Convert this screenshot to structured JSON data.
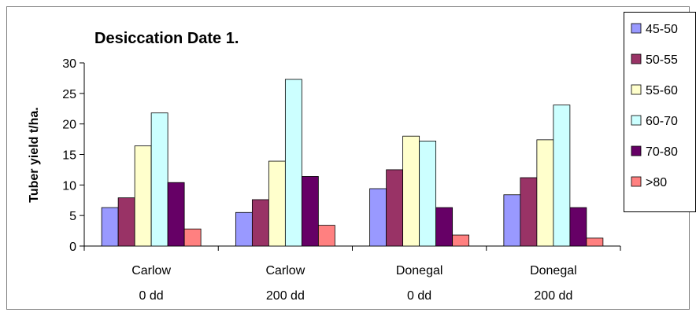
{
  "chart_data": {
    "type": "bar",
    "title": "Desiccation Date 1.",
    "ylabel": "Tuber yield t/ha.",
    "xlabel": "",
    "ylim": [
      0,
      30
    ],
    "yticks": [
      0,
      5,
      10,
      15,
      20,
      25,
      30
    ],
    "grid": false,
    "legend_position": "right",
    "categories": [
      {
        "line1": "Carlow",
        "line2": "0 dd"
      },
      {
        "line1": "Carlow",
        "line2": "200 dd"
      },
      {
        "line1": "Donegal",
        "line2": "0 dd"
      },
      {
        "line1": "Donegal",
        "line2": "200 dd"
      }
    ],
    "series": [
      {
        "name": "45-50",
        "color": "#9999ff",
        "values": [
          6.3,
          5.5,
          9.4,
          8.4
        ]
      },
      {
        "name": "50-55",
        "color": "#993366",
        "values": [
          7.9,
          7.6,
          12.5,
          11.2
        ]
      },
      {
        "name": "55-60",
        "color": "#ffffcc",
        "values": [
          16.4,
          13.9,
          18.0,
          17.4
        ]
      },
      {
        "name": "60-70",
        "color": "#ccffff",
        "values": [
          21.8,
          27.3,
          17.2,
          23.1
        ]
      },
      {
        "name": "70-80",
        "color": "#660066",
        "values": [
          10.4,
          11.4,
          6.3,
          6.3
        ]
      },
      {
        "name": ">80",
        "color": "#ff8080",
        "values": [
          2.8,
          3.4,
          1.8,
          1.3
        ]
      }
    ]
  }
}
